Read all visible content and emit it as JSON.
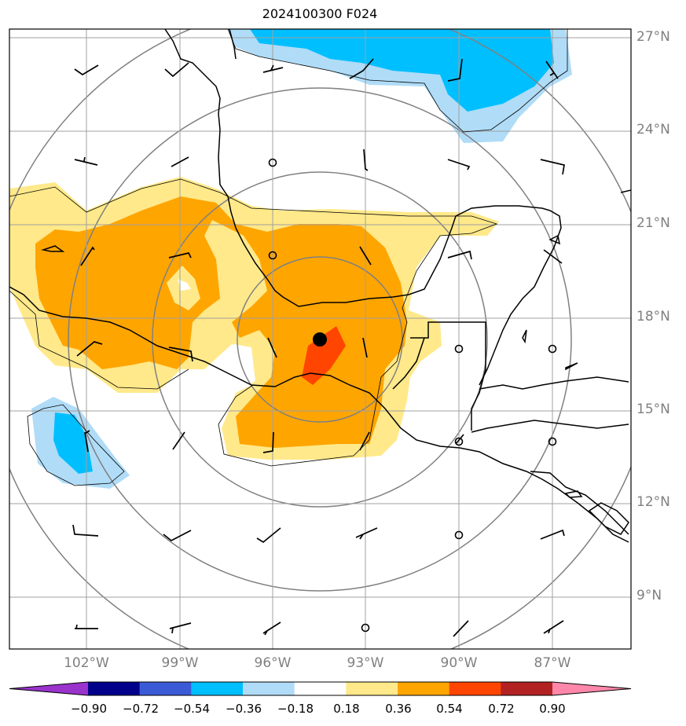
{
  "title": "2024100300 F024",
  "lat_labels": [
    "27°N",
    "24°N",
    "21°N",
    "18°N",
    "15°N",
    "12°N",
    "9°N"
  ],
  "lon_labels": [
    "102°W",
    "99°W",
    "96°W",
    "93°W",
    "90°W",
    "87°W"
  ],
  "colorbar": {
    "ticks": [
      "−0.90",
      "−0.72",
      "−0.54",
      "−0.36",
      "−0.18",
      "0.18",
      "0.36",
      "0.54",
      "0.72",
      "0.90"
    ],
    "colors": [
      "#9933cc",
      "#00008b",
      "#3b5bd6",
      "#00bfff",
      "#b0dcf7",
      "#ffffff",
      "#ffe98a",
      "#ffa500",
      "#ff4500",
      "#b22222",
      "#ff88aa"
    ]
  },
  "center_marker": "storm-center"
}
